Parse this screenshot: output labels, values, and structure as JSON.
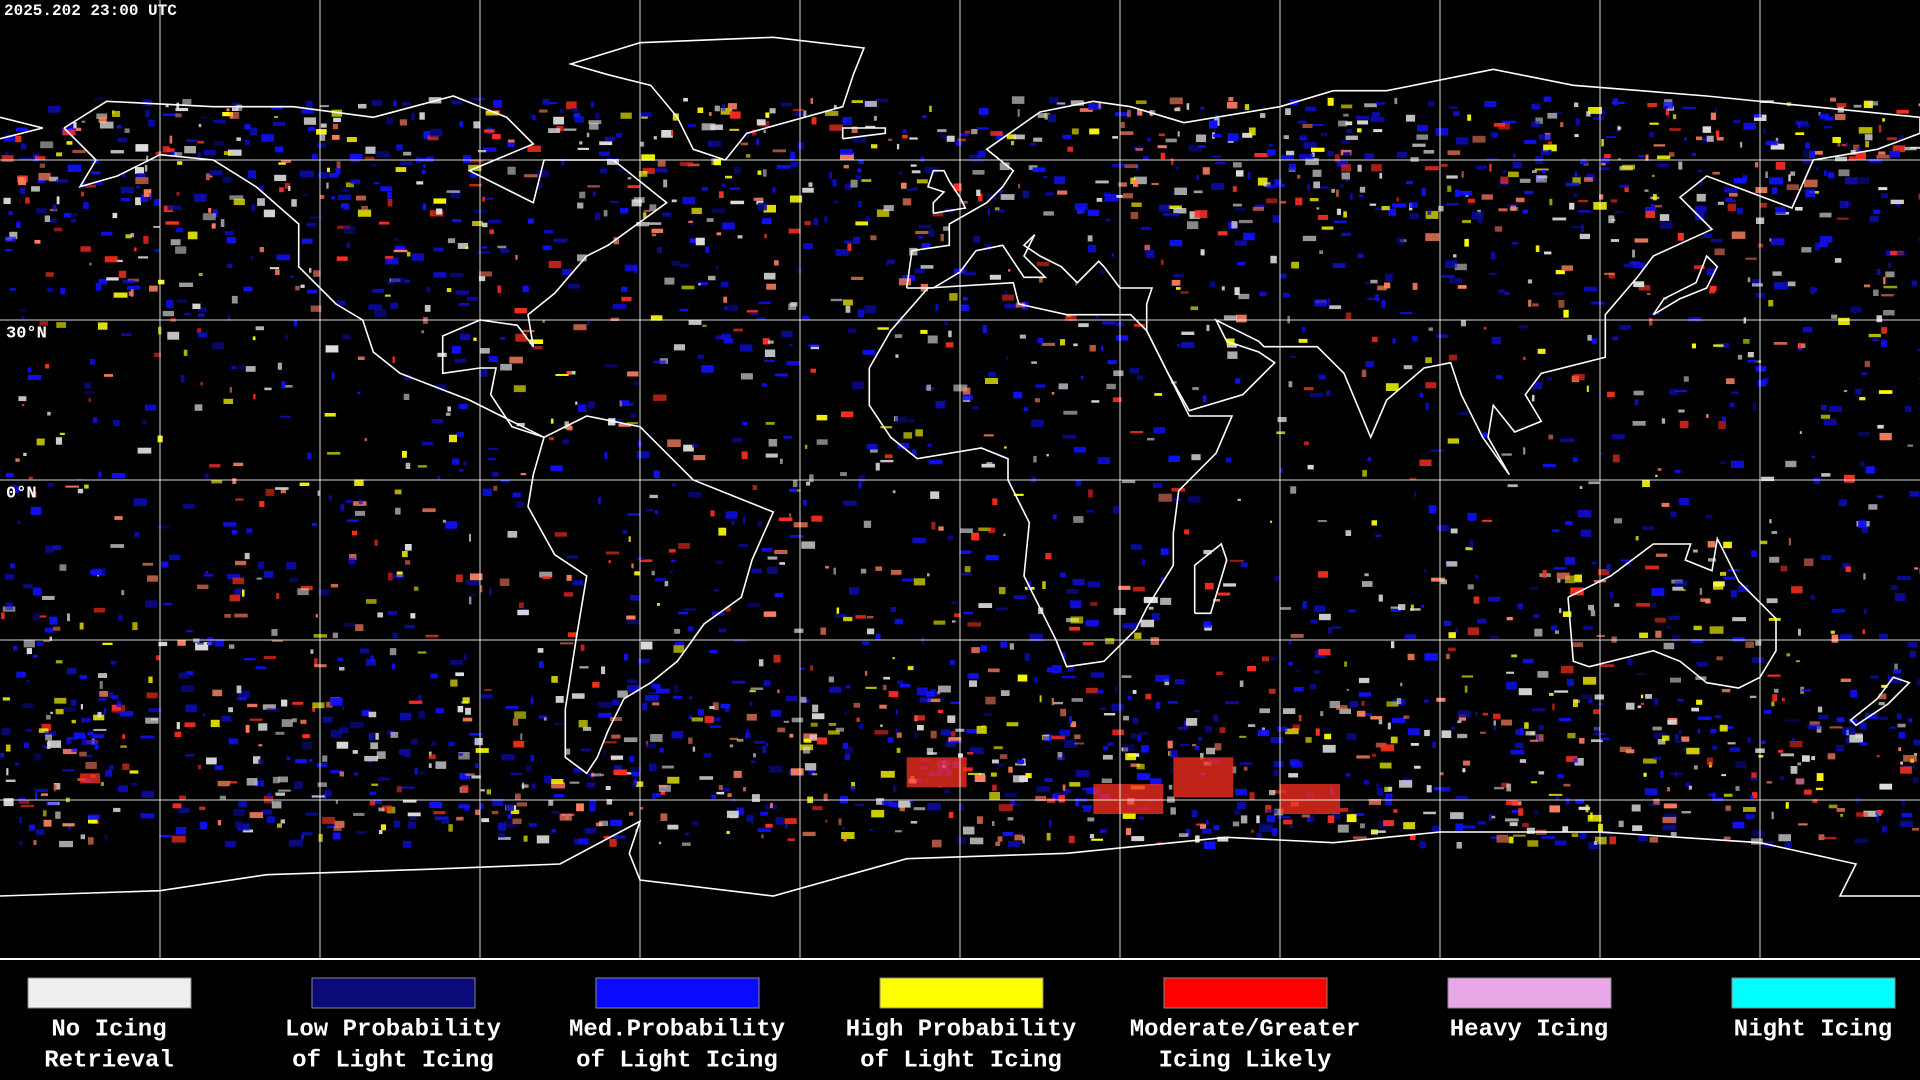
{
  "header": {
    "timestamp": "2025.202 23:00 UTC"
  },
  "map": {
    "latitude_labels": [
      "30°N",
      "0°N"
    ]
  },
  "legend": [
    {
      "color": "#eeeeee",
      "lines": [
        "No Icing",
        "Retrieval"
      ]
    },
    {
      "color": "#0a0a78",
      "lines": [
        "Low Probability",
        "of Light Icing"
      ]
    },
    {
      "color": "#0a0aff",
      "lines": [
        "Med.Probability",
        "of Light Icing"
      ]
    },
    {
      "color": "#ffff00",
      "lines": [
        "High Probability",
        "of Light Icing"
      ]
    },
    {
      "color": "#ff0000",
      "lines": [
        "Moderate/Greater",
        "Icing Likely"
      ]
    },
    {
      "color": "#e8a8e8",
      "lines": [
        "Heavy Icing"
      ]
    },
    {
      "color": "#00ffff",
      "lines": [
        "Night Icing"
      ]
    }
  ]
}
